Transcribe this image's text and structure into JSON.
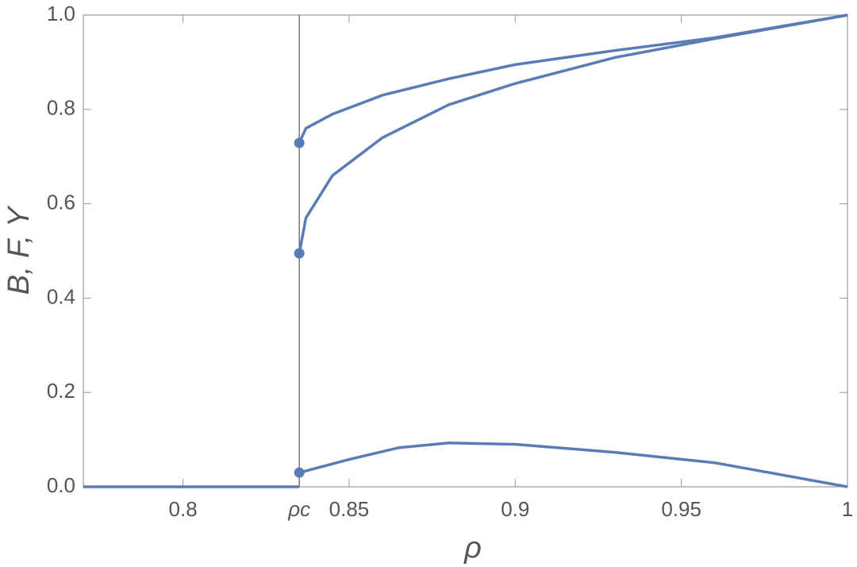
{
  "chart_data": {
    "type": "line",
    "xlabel": "ρ",
    "ylabel": "B, F, Y",
    "color": "#5a7cb4",
    "xlim": [
      0.77,
      1
    ],
    "ylim": [
      0,
      1
    ],
    "xticks": [
      {
        "value": 0.835,
        "label": "ρc"
      },
      0.8,
      0.85,
      0.9,
      0.95,
      1
    ],
    "yticks": [
      {
        "value": 0,
        "label": "0.0"
      },
      0.2,
      0.4,
      0.6,
      0.8,
      {
        "value": 1,
        "label": "1.0"
      }
    ],
    "series": [
      {
        "x": [
          0.77,
          0.835
        ],
        "values": [
          0,
          0
        ]
      },
      {
        "x": [
          0.835,
          0.837,
          0.845,
          0.86,
          0.88,
          0.9,
          0.93,
          0.96,
          1
        ],
        "values": [
          0.729,
          0.76,
          0.79,
          0.83,
          0.865,
          0.895,
          0.925,
          0.952,
          1
        ]
      },
      {
        "x": [
          0.835,
          0.837,
          0.845,
          0.86,
          0.88,
          0.9,
          0.93,
          0.96,
          1
        ],
        "values": [
          0.495,
          0.57,
          0.66,
          0.74,
          0.81,
          0.855,
          0.91,
          0.95,
          1
        ]
      },
      {
        "x": [
          0.835,
          0.85,
          0.865,
          0.88,
          0.9,
          0.93,
          0.96,
          1
        ],
        "values": [
          0.03,
          0.058,
          0.083,
          0.093,
          0.09,
          0.073,
          0.051,
          0
        ]
      }
    ],
    "points": {
      "x": [
        0.835,
        0.835,
        0.835
      ],
      "values": [
        0.729,
        0.495,
        0.03
      ]
    }
  }
}
